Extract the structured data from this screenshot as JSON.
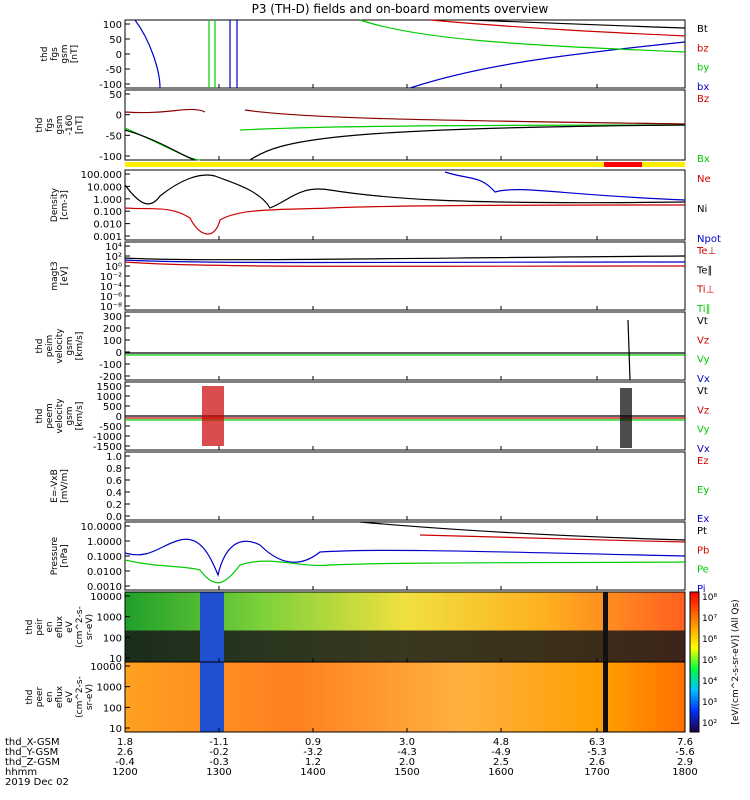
{
  "title": "P3 (TH-D) fields and on-board moments overview",
  "chart_data": [
    {
      "type": "line",
      "panel_label": [
        "thd",
        "fgs",
        "gsm",
        "[nT]"
      ],
      "yticks": [
        "100",
        "50",
        "0",
        "-50",
        "-100"
      ],
      "ylim": [
        -100,
        100
      ],
      "legend": [
        {
          "name": "Bt",
          "color": "#000000"
        },
        {
          "name": "bz",
          "color": "#cc0000"
        },
        {
          "name": "by",
          "color": "#00cc00"
        },
        {
          "name": "bx",
          "color": "#0000cc"
        }
      ]
    },
    {
      "type": "line",
      "panel_label": [
        "thd",
        "fgs",
        "gsm",
        "-160",
        "[nT]"
      ],
      "yticks": [
        "50",
        "0",
        "-50",
        "-100"
      ],
      "ylim": [
        -120,
        90
      ],
      "legend": [
        {
          "name": "Bz",
          "color": "#cc0000"
        },
        {
          "name": "Bx",
          "color": "#00cc00"
        }
      ]
    },
    {
      "type": "line",
      "scale": "log",
      "panel_label": [
        "Density",
        "[cm-3]"
      ],
      "yticks": [
        "100.000",
        "10.000",
        "1.000",
        "0.100",
        "0.010",
        "0.001"
      ],
      "legend": [
        {
          "name": "Ne",
          "color": "#cc0000"
        },
        {
          "name": "Ni",
          "color": "#000000"
        },
        {
          "name": "Npot",
          "color": "#0000cc"
        }
      ]
    },
    {
      "type": "line",
      "scale": "log",
      "panel_label": [
        "magt3",
        "[eV]"
      ],
      "yticks": [
        "10⁴",
        "10²",
        "10⁰",
        "10⁻²",
        "10⁻⁴",
        "10⁻⁶",
        "10⁻⁸"
      ],
      "legend": [
        {
          "name": "Te⊥",
          "color": "#cc0000"
        },
        {
          "name": "Te∥",
          "color": "#000000"
        },
        {
          "name": "Ti⊥",
          "color": "#cc0000"
        },
        {
          "name": "Ti∥",
          "color": "#00cc00"
        }
      ]
    },
    {
      "type": "line",
      "panel_label": [
        "thd",
        "peim",
        "velocity",
        "gsm",
        "[km/s]"
      ],
      "yticks": [
        "300",
        "200",
        "100",
        "0",
        "-100",
        "-200"
      ],
      "ylim": [
        -200,
        300
      ],
      "legend": [
        {
          "name": "Vt",
          "color": "#000000"
        },
        {
          "name": "Vz",
          "color": "#cc0000"
        },
        {
          "name": "Vy",
          "color": "#00cc00"
        },
        {
          "name": "Vx",
          "color": "#0000cc"
        }
      ]
    },
    {
      "type": "line",
      "panel_label": [
        "thd",
        "peem",
        "velocity",
        "gsm",
        "[km/s]"
      ],
      "yticks": [
        "1500",
        "1000",
        "500",
        "0",
        "-500",
        "-1000",
        "-1500"
      ],
      "ylim": [
        -1500,
        1500
      ],
      "legend": [
        {
          "name": "Vt",
          "color": "#000000"
        },
        {
          "name": "Vz",
          "color": "#cc0000"
        },
        {
          "name": "Vy",
          "color": "#00cc00"
        },
        {
          "name": "Vx",
          "color": "#0000cc"
        }
      ]
    },
    {
      "type": "line",
      "panel_label": [
        "E=-VxB",
        "[mV/m]"
      ],
      "yticks": [
        "1.0",
        "0.8",
        "0.6",
        "0.4",
        "0.2",
        "0.0"
      ],
      "ylim": [
        0,
        1
      ],
      "legend": [
        {
          "name": "Ez",
          "color": "#cc0000"
        },
        {
          "name": "Ey",
          "color": "#00cc00"
        },
        {
          "name": "Ex",
          "color": "#0000cc"
        }
      ]
    },
    {
      "type": "line",
      "scale": "log",
      "panel_label": [
        "Pressure",
        "[nPa]"
      ],
      "yticks": [
        "10.0000",
        "1.0000",
        "0.1000",
        "0.0100",
        "0.0010"
      ],
      "legend": [
        {
          "name": "Pt",
          "color": "#000000"
        },
        {
          "name": "Pb",
          "color": "#cc0000"
        },
        {
          "name": "Pe",
          "color": "#00cc00"
        },
        {
          "name": "Pi",
          "color": "#0000cc"
        }
      ]
    },
    {
      "type": "heatmap",
      "panel_label": [
        "thd",
        "peir",
        "en",
        "eflux",
        "eV",
        "(cm^2-s-",
        "sr-eV)"
      ],
      "yticks": [
        "10000",
        "1000",
        "100",
        "10"
      ]
    },
    {
      "type": "heatmap",
      "panel_label": [
        "thd",
        "peer",
        "en",
        "eflux",
        "eV",
        "(cm^2-s-",
        "sr-eV)"
      ],
      "yticks": [
        "10000",
        "1000",
        "100",
        "10"
      ]
    }
  ],
  "colorbar": {
    "ticks": [
      "10⁸",
      "10⁷",
      "10⁶",
      "10⁵",
      "10⁴",
      "10³",
      "10²"
    ],
    "label": "[eV/(cm^2-s-sr-eV)] (All Qs)"
  },
  "xaxis": {
    "row_labels": [
      "thd_X-GSM",
      "thd_Y-GSM",
      "thd_Z-GSM",
      "hhmm"
    ],
    "date": "2019 Dec 02",
    "ticks": [
      {
        "x": "1.8",
        "y": "2.6",
        "z": "-0.4",
        "hhmm": "1200"
      },
      {
        "x": "-1.1",
        "y": "-0.2",
        "z": "-0.3",
        "hhmm": "1300"
      },
      {
        "x": "0.9",
        "y": "-3.2",
        "z": "1.2",
        "hhmm": "1400"
      },
      {
        "x": "3.0",
        "y": "-4.3",
        "z": "2.0",
        "hhmm": "1500"
      },
      {
        "x": "4.8",
        "y": "-4.9",
        "z": "2.5",
        "hhmm": "1600"
      },
      {
        "x": "6.3",
        "y": "-5.3",
        "z": "2.6",
        "hhmm": "1700"
      },
      {
        "x": "7.6",
        "y": "-5.6",
        "z": "2.9",
        "hhmm": "1800"
      }
    ]
  }
}
